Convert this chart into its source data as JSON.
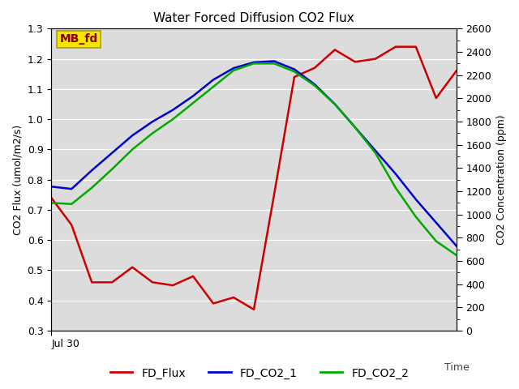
{
  "title": "Water Forced Diffusion CO2 Flux",
  "xlabel": "Time",
  "ylabel_left": "CO2 Flux (umol/m2/s)",
  "ylabel_right": "CO2 Concentration (ppm)",
  "ylim_left": [
    0.3,
    1.3
  ],
  "ylim_right": [
    0,
    2600
  ],
  "x_tick_label": "Jul 30",
  "background_color": "#dcdcdc",
  "annotation_text": "MB_fd",
  "annotation_color": "#8b0000",
  "annotation_bg": "#f5e600",
  "fd_flux_x": [
    0,
    1,
    2,
    3,
    4,
    5,
    6,
    7,
    8,
    9,
    10,
    11,
    12,
    13,
    14,
    15,
    16,
    17,
    18,
    19,
    20
  ],
  "fd_flux_y": [
    0.74,
    0.65,
    0.46,
    0.46,
    0.51,
    0.46,
    0.45,
    0.48,
    0.39,
    0.41,
    0.37,
    0.75,
    1.14,
    1.17,
    1.23,
    1.19,
    1.2,
    1.24,
    1.24,
    1.07,
    1.16
  ],
  "fd_co2_1_x": [
    0,
    1,
    2,
    3,
    4,
    5,
    6,
    7,
    8,
    9,
    10,
    11,
    12,
    13,
    14,
    15,
    16,
    17,
    18,
    19,
    20
  ],
  "fd_co2_1_y": [
    1240,
    1220,
    1380,
    1530,
    1680,
    1800,
    1900,
    2020,
    2160,
    2260,
    2310,
    2320,
    2250,
    2120,
    1950,
    1750,
    1550,
    1350,
    1130,
    930,
    730
  ],
  "fd_co2_2_x": [
    0,
    1,
    2,
    3,
    4,
    5,
    6,
    7,
    8,
    9,
    10,
    11,
    12,
    13,
    14,
    15,
    16,
    17,
    18,
    19,
    20
  ],
  "fd_co2_2_y": [
    1100,
    1090,
    1230,
    1390,
    1560,
    1700,
    1820,
    1960,
    2100,
    2240,
    2300,
    2300,
    2230,
    2110,
    1950,
    1750,
    1530,
    1230,
    980,
    770,
    650
  ],
  "flux_color": "#cc0000",
  "co2_1_color": "#0000cc",
  "co2_2_color": "#00aa00",
  "line_width": 1.8,
  "yticks_left": [
    0.3,
    0.4,
    0.5,
    0.6,
    0.7,
    0.8,
    0.9,
    1.0,
    1.1,
    1.2,
    1.3
  ],
  "yticks_right_major": [
    0,
    200,
    400,
    600,
    800,
    1000,
    1200,
    1400,
    1600,
    1800,
    2000,
    2200,
    2400,
    2600
  ],
  "fig_width": 6.4,
  "fig_height": 4.8,
  "fig_dpi": 100
}
